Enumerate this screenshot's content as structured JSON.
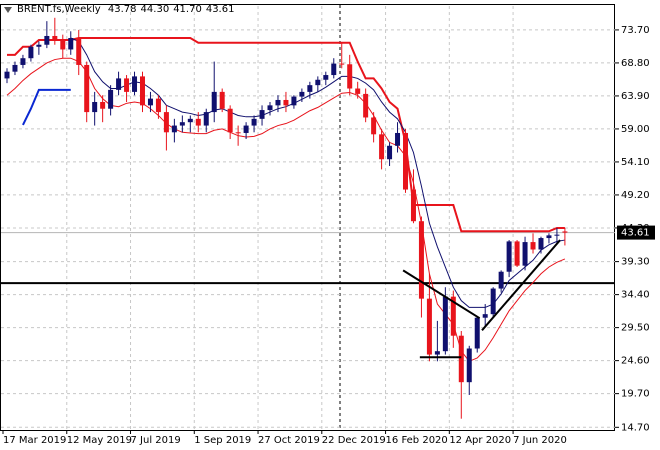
{
  "chart_data": {
    "type": "candlestick",
    "title": "BRENT.fs,Weekly",
    "info": [
      {
        "value": 43.78,
        "label": "43.78"
      },
      {
        "value": 44.3,
        "label": "44.30"
      },
      {
        "value": 41.7,
        "label": "41.70"
      },
      {
        "value": 43.61,
        "label": "43.61"
      }
    ],
    "last_price": {
      "value": 43.61,
      "label": "43.61"
    },
    "categories": [
      "17 Mar 2019",
      null,
      null,
      null,
      null,
      null,
      null,
      null,
      "12 May 2019",
      null,
      null,
      null,
      null,
      null,
      null,
      null,
      "7 Jul 2019",
      null,
      null,
      null,
      null,
      null,
      null,
      null,
      "1 Sep 2019",
      null,
      null,
      null,
      null,
      null,
      null,
      null,
      "27 Oct 2019",
      null,
      null,
      null,
      null,
      null,
      null,
      null,
      "22 Dec 2019",
      null,
      null,
      null,
      null,
      null,
      null,
      null,
      "16 Feb 2020",
      null,
      null,
      null,
      null,
      null,
      null,
      null,
      "12 Apr 2020",
      null,
      null,
      null,
      null,
      null,
      null,
      null,
      "7 Jun 2020",
      null,
      null,
      null,
      null,
      null,
      null
    ],
    "open": [
      66.5,
      67.5,
      68.5,
      69.5,
      71.2,
      71.5,
      72.8,
      72.2,
      70.8,
      72.5,
      68.5,
      61.5,
      63,
      62,
      64.8,
      66.5,
      64.5,
      66.8,
      62.5,
      63.5,
      61.5,
      58.5,
      59.5,
      60,
      60.5,
      59.5,
      61.5,
      64.5,
      62,
      58.5,
      58.4,
      59.5,
      60.5,
      61.8,
      62.5,
      63.3,
      62.5,
      63.8,
      64.5,
      65.5,
      66.3,
      67,
      68.7,
      68.6,
      65,
      64.2,
      60.7,
      58.2,
      54.5,
      56.5,
      58.4,
      50,
      45.3,
      33.8,
      25.5,
      26,
      34.1,
      28.3,
      21.4,
      26.4,
      30.97,
      31.5,
      35.3,
      37.8,
      42.3,
      38.7,
      42.2,
      41.1,
      42.8,
      43.2,
      43.78
    ],
    "high": [
      68,
      69,
      70,
      71.5,
      72,
      75,
      75.5,
      73,
      73.5,
      73.7,
      69,
      64.5,
      64,
      65.5,
      67.5,
      67,
      67.5,
      67.5,
      64.5,
      64,
      62.5,
      60.5,
      61,
      61,
      61.5,
      62,
      69,
      65,
      62.5,
      59.5,
      60,
      61,
      62.5,
      63,
      64,
      64.5,
      64,
      65,
      66,
      66.8,
      67.5,
      69.5,
      71.8,
      70,
      66,
      65,
      61.5,
      59,
      57,
      60,
      59,
      53,
      46,
      37.5,
      30.5,
      35.5,
      35,
      29,
      26.8,
      31,
      33,
      35.5,
      38,
      42.5,
      42.5,
      43,
      43.5,
      43,
      43.5,
      44.3,
      44.3
    ],
    "low": [
      65.8,
      67,
      68,
      69,
      70,
      71,
      71.5,
      69.5,
      70,
      67,
      60,
      59.5,
      60,
      61,
      64,
      63,
      64,
      61.5,
      61.5,
      60.5,
      55.8,
      57,
      58.5,
      58.5,
      58.5,
      58.5,
      60,
      61.5,
      57.5,
      56.5,
      57.5,
      58.5,
      59.5,
      61,
      61.5,
      61.5,
      62,
      63,
      63.5,
      64.5,
      65.5,
      66.5,
      68,
      64,
      63.5,
      60,
      57,
      53,
      53.5,
      55.5,
      49.5,
      45,
      31,
      24.5,
      24.5,
      25.5,
      26.5,
      15.98,
      19.5,
      25.8,
      29.5,
      31,
      34.7,
      37,
      38.5,
      38,
      40.5,
      40.5,
      42,
      42,
      41.7
    ],
    "close": [
      67.5,
      68.5,
      69.5,
      71.2,
      71.5,
      72.8,
      72.2,
      70.8,
      72.5,
      68.5,
      61.5,
      63,
      62,
      64.8,
      66.5,
      64.5,
      66.8,
      62.5,
      63.5,
      61.5,
      58.5,
      59.5,
      60,
      60.5,
      59.5,
      61.5,
      64.5,
      62,
      58.5,
      58.4,
      59.5,
      60.5,
      61.8,
      62.5,
      63.3,
      62.5,
      63.8,
      64.5,
      65.5,
      66.3,
      67,
      68.7,
      68.6,
      65,
      64.2,
      60.7,
      58.2,
      54.5,
      56.5,
      58.4,
      50,
      45.3,
      33.8,
      25.5,
      26,
      34.1,
      28.3,
      21.4,
      26.4,
      30.97,
      31.5,
      35.3,
      37.8,
      42.3,
      38.7,
      42.2,
      41.1,
      42.8,
      43.2,
      43.3,
      43.61
    ],
    "up_color": "#10106e",
    "down_color": "#e8141c",
    "overlays": [
      {
        "color": "#e8141c",
        "values": [
          70,
          70,
          71.2,
          71.2,
          72.2,
          72.2,
          72.2,
          72.2,
          72.2,
          72.5,
          72.5,
          72.5,
          72.5,
          72.5,
          72.5,
          72.5,
          72.5,
          72.5,
          72.5,
          72.5,
          72.5,
          72.5,
          72.5,
          72.5,
          71.8,
          71.8,
          71.8,
          71.8,
          71.8,
          71.8,
          71.8,
          71.8,
          71.8,
          71.8,
          71.8,
          71.8,
          71.8,
          71.8,
          71.8,
          71.8,
          71.8,
          71.8,
          71.8,
          71.8,
          69,
          66.5,
          66.5,
          65,
          63,
          62,
          57,
          47.7,
          47.7,
          47.7,
          47.7,
          47.7,
          47.7,
          43.8,
          43.8,
          43.8,
          43.8,
          43.8,
          43.8,
          43.8,
          43.8,
          43.8,
          43.8,
          43.8,
          43.8,
          44.3,
          44.3
        ]
      },
      {
        "color": "#10106e",
        "values": [
          null,
          null,
          null,
          null,
          null,
          null,
          null,
          null,
          72.5,
          72,
          70,
          67.5,
          66,
          65,
          65,
          65.5,
          66,
          65.8,
          65,
          64,
          62.5,
          62,
          61.5,
          61.3,
          61,
          61.2,
          61.8,
          62,
          61.5,
          61,
          60.8,
          60.8,
          61,
          61.5,
          62,
          62.3,
          62.8,
          63.4,
          64,
          64.5,
          65.2,
          66,
          66.8,
          66.8,
          66.5,
          65.8,
          64.8,
          63,
          61.5,
          60.5,
          58.5,
          55.5,
          50.5,
          45,
          41.5,
          38.5,
          35.5,
          33.5,
          32.5,
          32.5,
          32.5,
          33,
          34.5,
          36.5,
          37.5,
          38.5,
          39.5,
          41,
          41.8,
          42.3,
          42.5
        ]
      },
      {
        "color": "#e8141c",
        "values": [
          64,
          65,
          66.2,
          67.2,
          68,
          68.8,
          69.3,
          69.5,
          69.5,
          69,
          67.5,
          65,
          63.5,
          62.5,
          62.3,
          62.8,
          63,
          62.8,
          62,
          61,
          59.8,
          59,
          58.5,
          58.4,
          58.3,
          58.3,
          58.8,
          59,
          58.5,
          58,
          57.8,
          57.9,
          58.3,
          59,
          59.5,
          59.8,
          60.3,
          61,
          61.7,
          62.2,
          62.9,
          63.6,
          64.3,
          64.4,
          64,
          62.8,
          61,
          58.8,
          57,
          56.5,
          55,
          51,
          45,
          37.5,
          33,
          31.5,
          30,
          26,
          24.5,
          25,
          26.2,
          28,
          30,
          32,
          33.5,
          35,
          36.2,
          37.5,
          38.5,
          39.2,
          39.7
        ]
      },
      {
        "color": "#0a28d2",
        "values": [
          null,
          null,
          59.6,
          62,
          64.8,
          64.8,
          64.8,
          64.8,
          64.8,
          null,
          null,
          null,
          null,
          null,
          null,
          null,
          null,
          null,
          null,
          null,
          null,
          null,
          null,
          null,
          null,
          null,
          null,
          null,
          null,
          null,
          null,
          null,
          null,
          null,
          null,
          null,
          null,
          null,
          null,
          null,
          null,
          null,
          null,
          null,
          null,
          null,
          null,
          null,
          null,
          null,
          null,
          null,
          null,
          null,
          null,
          null,
          null,
          null,
          null,
          null,
          null,
          null,
          null,
          null,
          null,
          null,
          null,
          null,
          null,
          null,
          null
        ]
      }
    ],
    "horizontal_line": 36.1,
    "trendlines": [
      {
        "from": [
          49.7,
          38.0
        ],
        "to": [
          59.3,
          30.9
        ]
      },
      {
        "from": [
          51.8,
          25.1
        ],
        "to": [
          57.0,
          25.1
        ]
      },
      {
        "from": [
          59.6,
          29.1
        ],
        "to": [
          69.4,
          42.5
        ]
      }
    ],
    "ylim": [
      14.3,
      77.4
    ],
    "yticks": [
      {
        "value": 73.7,
        "label": "73.70"
      },
      {
        "value": 68.8,
        "label": "68.80"
      },
      {
        "value": 63.9,
        "label": "63.90"
      },
      {
        "value": 59.0,
        "label": "59.00"
      },
      {
        "value": 54.1,
        "label": "54.10"
      },
      {
        "value": 49.2,
        "label": "49.20"
      },
      {
        "value": 44.3,
        "label": "44.30"
      },
      {
        "value": 39.3,
        "label": "39.30"
      },
      {
        "value": 34.4,
        "label": "34.40"
      },
      {
        "value": 29.5,
        "label": "29.50"
      },
      {
        "value": 24.6,
        "label": "24.60"
      },
      {
        "value": 19.7,
        "label": "19.70"
      },
      {
        "value": 14.7,
        "label": "14.70"
      }
    ],
    "grid": true
  }
}
